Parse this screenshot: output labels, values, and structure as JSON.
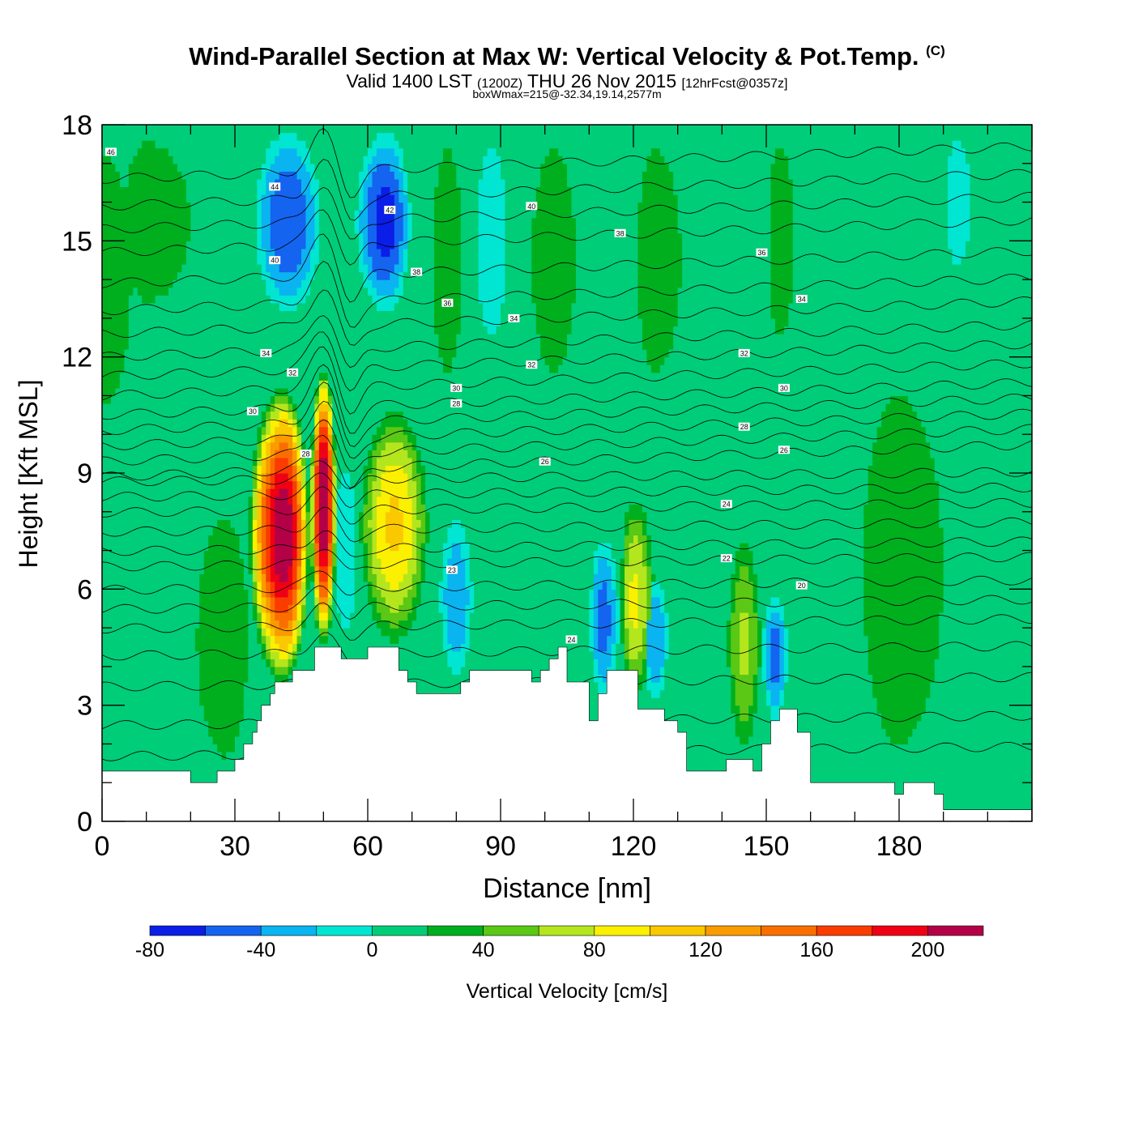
{
  "chart_data": {
    "type": "heatmap",
    "title_main": "Wind-Parallel Section at Max W: Vertical Velocity & Pot.Temp.",
    "title_mark": "(C)",
    "subtitle_a": "Valid 1400 LST",
    "subtitle_b": "(1200Z)",
    "subtitle_c": "THU 26 Nov 2015",
    "subtitle_d": "[12hrFcst@0357z]",
    "subtitle_line3": "boxWmax=215@-32.34,19.14,2577m",
    "xlabel": "Distance [nm]",
    "ylabel": "Height [Kft MSL]",
    "xlim": [
      0,
      210
    ],
    "ylim": [
      0,
      18
    ],
    "x_ticks": [
      0,
      30,
      60,
      90,
      120,
      150,
      180
    ],
    "y_ticks": [
      0,
      3,
      6,
      9,
      12,
      15,
      18
    ],
    "colorbar": {
      "label": "Vertical Velocity [cm/s]",
      "bounds": [
        -80,
        -60,
        -40,
        -20,
        0,
        20,
        40,
        60,
        80,
        100,
        120,
        140,
        160,
        180,
        200,
        220
      ],
      "tick_labels": [
        "-80",
        "-40",
        "0",
        "40",
        "80",
        "120",
        "160",
        "200"
      ],
      "tick_values": [
        -80,
        -40,
        0,
        40,
        80,
        120,
        160,
        200
      ],
      "colors": [
        "#0a1ee8",
        "#1464f0",
        "#0ab4f0",
        "#00e6d2",
        "#00cd78",
        "#00af1e",
        "#5ac814",
        "#b4e61e",
        "#faf000",
        "#fac800",
        "#fa9b00",
        "#fa6e00",
        "#fa3c00",
        "#f00014",
        "#b40046"
      ]
    },
    "background_w": 10,
    "w_features": [
      {
        "x": 0,
        "x0": 0,
        "x1": 8,
        "z0": 10,
        "z1": 18,
        "w": 30
      },
      {
        "x": 10,
        "x0": 4,
        "x1": 22,
        "z0": 13,
        "z1": 18,
        "w": 30
      },
      {
        "x": 28,
        "x0": 20,
        "x1": 34,
        "z0": 1,
        "z1": 8.5,
        "w": 30
      },
      {
        "x": 41,
        "x0": 33,
        "x1": 47,
        "z0": 3.5,
        "z1": 11.3,
        "w": 210
      },
      {
        "x": 50,
        "x0": 47,
        "x1": 53,
        "z0": 4.5,
        "z1": 11.8,
        "w": 220
      },
      {
        "x": 42,
        "x0": 34,
        "x1": 50,
        "z0": 13,
        "z1": 18,
        "w": -70
      },
      {
        "x": 64,
        "x0": 57,
        "x1": 70,
        "z0": 13,
        "z1": 18,
        "w": -80
      },
      {
        "x": 55,
        "x0": 52,
        "x1": 58,
        "z0": 4.5,
        "z1": 9.5,
        "w": -30
      },
      {
        "x": 66,
        "x0": 58,
        "x1": 74,
        "z0": 4.5,
        "z1": 10.8,
        "w": 95
      },
      {
        "x": 80,
        "x0": 76,
        "x1": 84,
        "z0": 3.5,
        "z1": 8,
        "w": -50
      },
      {
        "x": 78,
        "x0": 74,
        "x1": 82,
        "z0": 11,
        "z1": 18,
        "w": 30
      },
      {
        "x": 88,
        "x0": 84,
        "x1": 92,
        "z0": 12,
        "z1": 18,
        "w": -30
      },
      {
        "x": 102,
        "x0": 96,
        "x1": 108,
        "z0": 11,
        "z1": 18,
        "w": 30
      },
      {
        "x": 113,
        "x0": 110,
        "x1": 117,
        "z0": 3,
        "z1": 7.5,
        "w": -60
      },
      {
        "x": 120,
        "x0": 117,
        "x1": 125,
        "z0": 3,
        "z1": 8.5,
        "w": 75
      },
      {
        "x": 125,
        "x0": 122,
        "x1": 128,
        "z0": 3,
        "z1": 6.5,
        "w": -50
      },
      {
        "x": 125,
        "x0": 120,
        "x1": 132,
        "z0": 11,
        "z1": 18,
        "w": 30
      },
      {
        "x": 145,
        "x0": 141,
        "x1": 149,
        "z0": 1.7,
        "z1": 7.5,
        "w": 55
      },
      {
        "x": 152,
        "x0": 149,
        "x1": 155,
        "z0": 2.5,
        "z1": 6,
        "w": -60
      },
      {
        "x": 180,
        "x0": 170,
        "x1": 192,
        "z0": 1,
        "z1": 12,
        "w": 30
      },
      {
        "x": 193,
        "x0": 190,
        "x1": 197,
        "z0": 14,
        "z1": 18,
        "w": -30
      },
      {
        "x": 153,
        "x0": 150,
        "x1": 157,
        "z0": 12,
        "z1": 18,
        "w": 30
      }
    ],
    "theta_contours": [
      {
        "label": "46",
        "base": 17.0,
        "lx": 2,
        "lz": 17.3
      },
      {
        "label": "44",
        "base": 16.3,
        "lx": 39,
        "lz": 16.4
      },
      {
        "label": "42",
        "base": 15.7,
        "lx": 65,
        "lz": 15.8
      },
      {
        "label": "40",
        "base": 15.1,
        "lx": 97,
        "lz": 15.9
      },
      {
        "label": "40",
        "base": 14.3,
        "lx": 39,
        "lz": 14.5
      },
      {
        "label": "38",
        "base": 13.6,
        "lx": 71,
        "lz": 14.2
      },
      {
        "label": "38",
        "base": 13.0,
        "lx": 117,
        "lz": 15.2
      },
      {
        "label": "36",
        "base": 12.4,
        "lx": 78,
        "lz": 13.4
      },
      {
        "label": "36",
        "base": 11.9,
        "lx": 149,
        "lz": 14.7
      },
      {
        "label": "34",
        "base": 11.4,
        "lx": 37,
        "lz": 12.1
      },
      {
        "label": "34",
        "base": 10.9,
        "lx": 93,
        "lz": 13.0
      },
      {
        "label": "34",
        "base": 10.5,
        "lx": 158,
        "lz": 13.5
      },
      {
        "label": "32",
        "base": 10.1,
        "lx": 43,
        "lz": 11.6
      },
      {
        "label": "32",
        "base": 9.7,
        "lx": 97,
        "lz": 11.8
      },
      {
        "label": "32",
        "base": 9.3,
        "lx": 145,
        "lz": 12.1
      },
      {
        "label": "30",
        "base": 8.9,
        "lx": 34,
        "lz": 10.6
      },
      {
        "label": "30",
        "base": 8.5,
        "lx": 80,
        "lz": 11.2
      },
      {
        "label": "30",
        "base": 8.1,
        "lx": 154,
        "lz": 11.2
      },
      {
        "label": "28",
        "base": 7.6,
        "lx": 46,
        "lz": 9.5
      },
      {
        "label": "28",
        "base": 7.1,
        "lx": 80,
        "lz": 10.8
      },
      {
        "label": "28",
        "base": 6.7,
        "lx": 145,
        "lz": 10.2
      },
      {
        "label": "26",
        "base": 6.1,
        "lx": 100,
        "lz": 9.3
      },
      {
        "label": "26",
        "base": 5.6,
        "lx": 154,
        "lz": 9.6
      },
      {
        "label": "24",
        "base": 5.1,
        "lx": 141,
        "lz": 8.2
      },
      {
        "label": "22",
        "base": 4.4,
        "lx": 141,
        "lz": 6.8
      },
      {
        "label": "20",
        "base": 3.6,
        "lx": 158,
        "lz": 6.1
      },
      {
        "label": "",
        "base": 2.6,
        "lx": 0,
        "lz": 0
      },
      {
        "label": "",
        "base": 1.8,
        "lx": 0,
        "lz": 0
      }
    ],
    "isolated_labels": [
      {
        "label": "23",
        "x": 79,
        "z": 6.5
      },
      {
        "label": "24",
        "x": 106,
        "z": 4.7
      }
    ],
    "terrain": [
      [
        0,
        1.3
      ],
      [
        20,
        1.3
      ],
      [
        20,
        1.0
      ],
      [
        26,
        1.0
      ],
      [
        26,
        1.3
      ],
      [
        30,
        1.3
      ],
      [
        30,
        1.6
      ],
      [
        32,
        1.6
      ],
      [
        32,
        2.0
      ],
      [
        34,
        2.0
      ],
      [
        34,
        2.3
      ],
      [
        35,
        2.3
      ],
      [
        35,
        2.6
      ],
      [
        36,
        2.6
      ],
      [
        36,
        3.0
      ],
      [
        38,
        3.0
      ],
      [
        38,
        3.3
      ],
      [
        39,
        3.3
      ],
      [
        39,
        3.6
      ],
      [
        43,
        3.6
      ],
      [
        43,
        3.9
      ],
      [
        48,
        3.9
      ],
      [
        48,
        4.5
      ],
      [
        54,
        4.5
      ],
      [
        54,
        4.2
      ],
      [
        60,
        4.2
      ],
      [
        60,
        4.5
      ],
      [
        67,
        4.5
      ],
      [
        67,
        3.9
      ],
      [
        69,
        3.9
      ],
      [
        69,
        3.6
      ],
      [
        71,
        3.6
      ],
      [
        71,
        3.3
      ],
      [
        81,
        3.3
      ],
      [
        81,
        3.6
      ],
      [
        83,
        3.6
      ],
      [
        83,
        3.9
      ],
      [
        97,
        3.9
      ],
      [
        97,
        3.6
      ],
      [
        99,
        3.6
      ],
      [
        99,
        3.9
      ],
      [
        101,
        3.9
      ],
      [
        101,
        4.2
      ],
      [
        103,
        4.2
      ],
      [
        103,
        4.5
      ],
      [
        105,
        4.5
      ],
      [
        105,
        3.6
      ],
      [
        110,
        3.6
      ],
      [
        110,
        2.6
      ],
      [
        112,
        2.6
      ],
      [
        112,
        3.3
      ],
      [
        114,
        3.3
      ],
      [
        114,
        3.9
      ],
      [
        121,
        3.9
      ],
      [
        121,
        2.9
      ],
      [
        127,
        2.9
      ],
      [
        127,
        2.6
      ],
      [
        130,
        2.6
      ],
      [
        130,
        2.3
      ],
      [
        132,
        2.3
      ],
      [
        132,
        1.3
      ],
      [
        141,
        1.3
      ],
      [
        141,
        1.6
      ],
      [
        147,
        1.6
      ],
      [
        147,
        1.3
      ],
      [
        149,
        1.3
      ],
      [
        149,
        2.0
      ],
      [
        151,
        2.0
      ],
      [
        151,
        2.6
      ],
      [
        153,
        2.6
      ],
      [
        153,
        2.9
      ],
      [
        157,
        2.9
      ],
      [
        157,
        2.3
      ],
      [
        160,
        2.3
      ],
      [
        160,
        1.0
      ],
      [
        179,
        1.0
      ],
      [
        179,
        0.7
      ],
      [
        181,
        0.7
      ],
      [
        181,
        1.0
      ],
      [
        188,
        1.0
      ],
      [
        188,
        0.7
      ],
      [
        190,
        0.7
      ],
      [
        190,
        0.3
      ],
      [
        210,
        0.3
      ]
    ]
  }
}
